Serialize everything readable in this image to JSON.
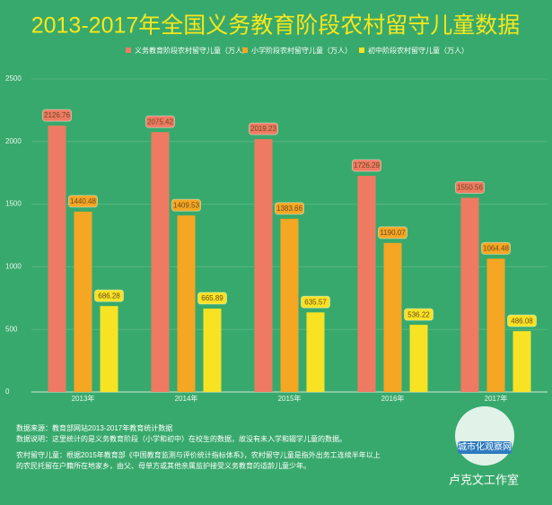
{
  "chart_data": {
    "type": "bar",
    "title": "2013-2017年全国义务教育阶段农村留守儿童数据",
    "categories": [
      "2013年",
      "2014年",
      "2015年",
      "2016年",
      "2017年"
    ],
    "series": [
      {
        "name": "义务教育阶段农村留守儿童（万人）",
        "color": "#ef7a62",
        "values": [
          2126.76,
          2075.42,
          2019.23,
          1726.29,
          1550.56
        ]
      },
      {
        "name": "小学阶段农村留守儿童（万人）",
        "color": "#f5a623",
        "values": [
          1440.48,
          1409.53,
          1383.66,
          1190.07,
          1064.48
        ]
      },
      {
        "name": "初中阶段农村留守儿童（万人）",
        "color": "#f8e224",
        "values": [
          686.28,
          665.89,
          635.57,
          536.22,
          486.08
        ]
      }
    ],
    "ylim": [
      0,
      2500
    ],
    "yticks": [
      0,
      500,
      1000,
      1500,
      2000,
      2500
    ],
    "grid": true
  },
  "notes": [
    "数据来源：教育部网站2013-2017年教育统计数据",
    "数据说明：这里统计的是义务教育阶段（小学和初中）在校生的数据，故没有未入学和辍学儿童的数据。",
    "农村留守儿童：根据2015年教育部《中国教育监测与评价统计指标体系》，农村留守儿童是指外出务工连续半年以上",
    "的农民托留在户籍所在地家乡，由父、母单方或其他亲属监护接受义务教育的适龄儿童少年。"
  ],
  "watermark": {
    "badge": "城市化观察网",
    "studio": "卢克文工作室"
  }
}
